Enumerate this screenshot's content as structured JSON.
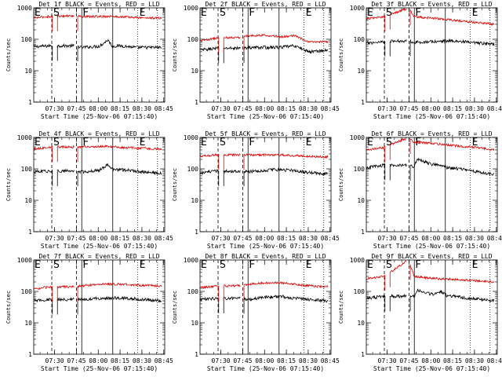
{
  "figure": {
    "background": "#ffffff",
    "axis_color": "#000000",
    "events_color": "#000000",
    "lld_color": "#e00000"
  },
  "chart_data": [
    {
      "type": "line",
      "title": "Det 1f BLACK = Events, RED = LLD",
      "ylabel": "Counts/sec",
      "xlabel": "Start Time (25-Nov-06 07:15:40)",
      "yscale": "log",
      "ylim": [
        1,
        1000
      ],
      "xlim_minutes": [
        0,
        90
      ],
      "x_ticks": [
        "07:30",
        "07:45",
        "08:00",
        "08:15",
        "08:30",
        "08:45"
      ],
      "y_ticks": [
        "1",
        "10",
        "100",
        "1000"
      ],
      "markers": [
        {
          "label": "E",
          "x": 0
        },
        {
          "label": "S",
          "x": 13
        },
        {
          "label": "F",
          "x": 33
        },
        {
          "label": "E",
          "x": 72
        }
      ],
      "series": [
        {
          "key": "events",
          "anchors": [
            [
              0,
              58
            ],
            [
              12,
              62
            ],
            [
              29,
              62
            ],
            [
              33,
              55
            ],
            [
              45,
              60
            ],
            [
              51,
              95
            ],
            [
              54,
              60
            ],
            [
              60,
              62
            ],
            [
              70,
              55
            ],
            [
              88,
              55
            ]
          ]
        },
        {
          "key": "lld",
          "anchors": [
            [
              0,
              480
            ],
            [
              12,
              540
            ],
            [
              29,
              560
            ],
            [
              33,
              520
            ],
            [
              50,
              540
            ],
            [
              60,
              520
            ],
            [
              75,
              480
            ],
            [
              88,
              470
            ]
          ]
        }
      ]
    },
    {
      "type": "line",
      "title": "Det 2f BLACK = Events, RED = LLD",
      "ylabel": "Counts/sec",
      "xlabel": "Start Time (25-Nov-06 07:15:40)",
      "yscale": "log",
      "ylim": [
        1,
        1000
      ],
      "xlim_minutes": [
        0,
        90
      ],
      "x_ticks": [
        "07:30",
        "07:45",
        "08:00",
        "08:15",
        "08:30",
        "08:45"
      ],
      "y_ticks": [
        "1",
        "10",
        "100",
        "1000"
      ],
      "markers": [
        {
          "label": "E",
          "x": 0
        },
        {
          "label": "S",
          "x": 13
        },
        {
          "label": "F",
          "x": 33
        },
        {
          "label": "E",
          "x": 72
        }
      ],
      "series": [
        {
          "key": "events",
          "anchors": [
            [
              0,
              45
            ],
            [
              12,
              52
            ],
            [
              29,
              52
            ],
            [
              33,
              55
            ],
            [
              45,
              55
            ],
            [
              55,
              55
            ],
            [
              65,
              62
            ],
            [
              75,
              40
            ],
            [
              88,
              45
            ]
          ]
        },
        {
          "key": "lld",
          "anchors": [
            [
              0,
              90
            ],
            [
              12,
              110
            ],
            [
              29,
              115
            ],
            [
              33,
              130
            ],
            [
              45,
              135
            ],
            [
              55,
              120
            ],
            [
              65,
              130
            ],
            [
              75,
              80
            ],
            [
              88,
              85
            ]
          ]
        }
      ]
    },
    {
      "type": "line",
      "title": "Det 3f BLACK = Events, RED = LLD",
      "ylabel": "Counts/sec",
      "xlabel": "Start Time (25-Nov-06 07:15:40)",
      "yscale": "log",
      "ylim": [
        1,
        1000
      ],
      "xlim_minutes": [
        0,
        90
      ],
      "x_ticks": [
        "07:30",
        "07:45",
        "08:00",
        "08:15",
        "08:30",
        "08:45"
      ],
      "y_ticks": [
        "1",
        "10",
        "100",
        "1000"
      ],
      "markers": [
        {
          "label": "E",
          "x": 0
        },
        {
          "label": "S",
          "x": 13
        },
        {
          "label": "F",
          "x": 33
        },
        {
          "label": "E",
          "x": 72
        }
      ],
      "series": [
        {
          "key": "events",
          "anchors": [
            [
              0,
              75
            ],
            [
              12,
              85
            ],
            [
              29,
              90
            ],
            [
              33,
              80
            ],
            [
              50,
              85
            ],
            [
              60,
              90
            ],
            [
              75,
              75
            ],
            [
              88,
              70
            ]
          ]
        },
        {
          "key": "lld",
          "anchors": [
            [
              0,
              450
            ],
            [
              12,
              520
            ],
            [
              29,
              1000
            ],
            [
              33,
              520
            ],
            [
              50,
              450
            ],
            [
              65,
              380
            ],
            [
              80,
              330
            ],
            [
              88,
              300
            ]
          ]
        }
      ]
    },
    {
      "type": "line",
      "title": "Det 4f BLACK = Events, RED = LLD",
      "ylabel": "Counts/sec",
      "xlabel": "Start Time (25-Nov-06 07:15:40)",
      "yscale": "log",
      "ylim": [
        1,
        1000
      ],
      "xlim_minutes": [
        0,
        90
      ],
      "x_ticks": [
        "07:30",
        "07:45",
        "08:00",
        "08:15",
        "08:30",
        "08:45"
      ],
      "y_ticks": [
        "1",
        "10",
        "100",
        "1000"
      ],
      "markers": [
        {
          "label": "E",
          "x": 0
        },
        {
          "label": "S",
          "x": 13
        },
        {
          "label": "F",
          "x": 33
        },
        {
          "label": "E",
          "x": 72
        }
      ],
      "series": [
        {
          "key": "events",
          "anchors": [
            [
              0,
              80
            ],
            [
              12,
              85
            ],
            [
              29,
              85
            ],
            [
              33,
              80
            ],
            [
              45,
              90
            ],
            [
              51,
              140
            ],
            [
              54,
              95
            ],
            [
              60,
              95
            ],
            [
              75,
              80
            ],
            [
              88,
              70
            ]
          ]
        },
        {
          "key": "lld",
          "anchors": [
            [
              0,
              430
            ],
            [
              12,
              500
            ],
            [
              29,
              500
            ],
            [
              33,
              500
            ],
            [
              50,
              520
            ],
            [
              60,
              480
            ],
            [
              75,
              450
            ],
            [
              88,
              420
            ]
          ]
        }
      ]
    },
    {
      "type": "line",
      "title": "Det 5f BLACK = Events, RED = LLD",
      "ylabel": "Counts/sec",
      "xlabel": "Start Time (25-Nov-06 07:15:40)",
      "yscale": "log",
      "ylim": [
        1,
        1000
      ],
      "xlim_minutes": [
        0,
        90
      ],
      "x_ticks": [
        "07:30",
        "07:45",
        "08:00",
        "08:15",
        "08:30",
        "08:45"
      ],
      "y_ticks": [
        "1",
        "10",
        "100",
        "1000"
      ],
      "markers": [
        {
          "label": "E",
          "x": 0
        },
        {
          "label": "S",
          "x": 13
        },
        {
          "label": "F",
          "x": 33
        },
        {
          "label": "E",
          "x": 72
        }
      ],
      "series": [
        {
          "key": "events",
          "anchors": [
            [
              0,
              75
            ],
            [
              12,
              85
            ],
            [
              29,
              85
            ],
            [
              33,
              80
            ],
            [
              45,
              90
            ],
            [
              55,
              95
            ],
            [
              65,
              88
            ],
            [
              75,
              75
            ],
            [
              88,
              70
            ]
          ]
        },
        {
          "key": "lld",
          "anchors": [
            [
              0,
              250
            ],
            [
              12,
              280
            ],
            [
              29,
              280
            ],
            [
              33,
              280
            ],
            [
              50,
              280
            ],
            [
              60,
              270
            ],
            [
              75,
              250
            ],
            [
              88,
              240
            ]
          ]
        }
      ]
    },
    {
      "type": "line",
      "title": "Det 6f BLACK = Events, RED = LLD",
      "ylabel": "Counts/sec",
      "xlabel": "Start Time (25-Nov-06 07:15:40)",
      "yscale": "log",
      "ylim": [
        1,
        1000
      ],
      "xlim_minutes": [
        0,
        90
      ],
      "x_ticks": [
        "07:30",
        "07:45",
        "08:00",
        "08:15",
        "08:30",
        "08:45"
      ],
      "y_ticks": [
        "1",
        "10",
        "100",
        "1000"
      ],
      "markers": [
        {
          "label": "E",
          "x": 0
        },
        {
          "label": "S",
          "x": 13
        },
        {
          "label": "F",
          "x": 33
        },
        {
          "label": "E",
          "x": 72
        }
      ],
      "series": [
        {
          "key": "events",
          "anchors": [
            [
              0,
              110
            ],
            [
              12,
              130
            ],
            [
              29,
              130
            ],
            [
              33,
              120
            ],
            [
              35,
              200
            ],
            [
              45,
              140
            ],
            [
              50,
              140
            ],
            [
              55,
              110
            ],
            [
              65,
              100
            ],
            [
              88,
              65
            ]
          ]
        },
        {
          "key": "lld",
          "anchors": [
            [
              0,
              400
            ],
            [
              12,
              480
            ],
            [
              29,
              1000
            ],
            [
              33,
              700
            ],
            [
              45,
              650
            ],
            [
              60,
              550
            ],
            [
              75,
              480
            ],
            [
              88,
              400
            ]
          ]
        }
      ]
    },
    {
      "type": "line",
      "title": "Det 7f BLACK = Events, RED = LLD",
      "ylabel": "Counts/sec",
      "xlabel": "Start Time (25-Nov-06 07:15:40)",
      "yscale": "log",
      "ylim": [
        1,
        1000
      ],
      "xlim_minutes": [
        0,
        90
      ],
      "x_ticks": [
        "07:30",
        "07:45",
        "08:00",
        "08:15",
        "08:30",
        "08:45"
      ],
      "y_ticks": [
        "1",
        "10",
        "100",
        "1000"
      ],
      "markers": [
        {
          "label": "E",
          "x": 0
        },
        {
          "label": "S",
          "x": 13
        },
        {
          "label": "F",
          "x": 33
        },
        {
          "label": "E",
          "x": 72
        }
      ],
      "series": [
        {
          "key": "events",
          "anchors": [
            [
              0,
              50
            ],
            [
              12,
              55
            ],
            [
              29,
              55
            ],
            [
              33,
              55
            ],
            [
              45,
              60
            ],
            [
              60,
              62
            ],
            [
              75,
              55
            ],
            [
              88,
              50
            ]
          ]
        },
        {
          "key": "lld",
          "anchors": [
            [
              0,
              120
            ],
            [
              12,
              140
            ],
            [
              29,
              140
            ],
            [
              33,
              150
            ],
            [
              45,
              170
            ],
            [
              60,
              170
            ],
            [
              75,
              155
            ],
            [
              88,
              150
            ]
          ]
        }
      ]
    },
    {
      "type": "line",
      "title": "Det 8f BLACK = Events, RED = LLD",
      "ylabel": "Counts/sec",
      "xlabel": "Start Time (25-Nov-06 07:15:40)",
      "yscale": "log",
      "ylim": [
        1,
        1000
      ],
      "xlim_minutes": [
        0,
        90
      ],
      "x_ticks": [
        "07:30",
        "07:45",
        "08:00",
        "08:15",
        "08:30",
        "08:45"
      ],
      "y_ticks": [
        "1",
        "10",
        "100",
        "1000"
      ],
      "markers": [
        {
          "label": "E",
          "x": 0
        },
        {
          "label": "S",
          "x": 13
        },
        {
          "label": "F",
          "x": 33
        },
        {
          "label": "E",
          "x": 72
        }
      ],
      "series": [
        {
          "key": "events",
          "anchors": [
            [
              0,
              55
            ],
            [
              12,
              60
            ],
            [
              29,
              60
            ],
            [
              33,
              55
            ],
            [
              45,
              65
            ],
            [
              55,
              70
            ],
            [
              65,
              60
            ],
            [
              75,
              55
            ],
            [
              88,
              50
            ]
          ]
        },
        {
          "key": "lld",
          "anchors": [
            [
              0,
              130
            ],
            [
              12,
              150
            ],
            [
              29,
              150
            ],
            [
              33,
              170
            ],
            [
              45,
              185
            ],
            [
              55,
              190
            ],
            [
              65,
              170
            ],
            [
              75,
              150
            ],
            [
              88,
              140
            ]
          ]
        }
      ]
    },
    {
      "type": "line",
      "title": "Det 9f BLACK = Events, RED = LLD",
      "ylabel": "Counts/sec",
      "xlabel": "Start Time (25-Nov-06 07:15:40)",
      "yscale": "log",
      "ylim": [
        1,
        1000
      ],
      "xlim_minutes": [
        0,
        90
      ],
      "x_ticks": [
        "07:30",
        "07:45",
        "08:00",
        "08:15",
        "08:30",
        "08:45"
      ],
      "y_ticks": [
        "1",
        "10",
        "100",
        "1000"
      ],
      "markers": [
        {
          "label": "E",
          "x": 0
        },
        {
          "label": "S",
          "x": 13
        },
        {
          "label": "F",
          "x": 33
        },
        {
          "label": "E",
          "x": 72
        }
      ],
      "series": [
        {
          "key": "events",
          "anchors": [
            [
              0,
              60
            ],
            [
              12,
              70
            ],
            [
              29,
              70
            ],
            [
              33,
              70
            ],
            [
              35,
              110
            ],
            [
              45,
              80
            ],
            [
              51,
              100
            ],
            [
              55,
              75
            ],
            [
              65,
              65
            ],
            [
              88,
              50
            ]
          ]
        },
        {
          "key": "lld",
          "anchors": [
            [
              0,
              250
            ],
            [
              12,
              300
            ],
            [
              29,
              1000
            ],
            [
              33,
              300
            ],
            [
              45,
              260
            ],
            [
              60,
              240
            ],
            [
              75,
              220
            ],
            [
              88,
              200
            ]
          ]
        }
      ]
    }
  ]
}
